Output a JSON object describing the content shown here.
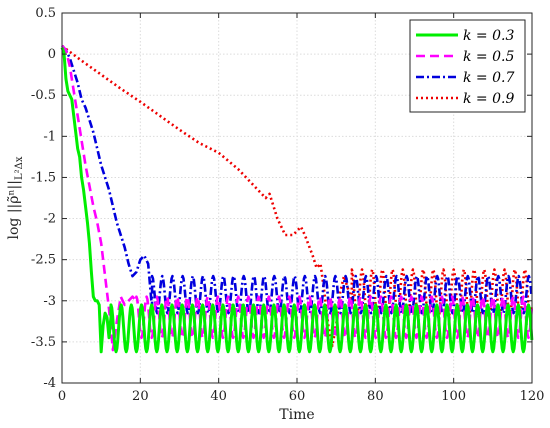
{
  "chart_data": {
    "type": "line",
    "title": "",
    "xlabel": "Time",
    "ylabel": "log ||ρ̃ⁿ||",
    "ylabel_subscript": "L²Δx",
    "xlim": [
      0,
      120
    ],
    "ylim": [
      -4,
      0.5
    ],
    "xticks": [
      0,
      20,
      40,
      60,
      80,
      100,
      120
    ],
    "yticks": [
      0.5,
      0,
      -0.5,
      -1,
      -1.5,
      -2,
      -2.5,
      -3,
      -3.5,
      -4
    ],
    "xtick_labels": [
      "0",
      "20",
      "40",
      "60",
      "80",
      "100",
      "120"
    ],
    "ytick_labels": [
      "0.5",
      "0",
      "-0.5",
      "-1",
      "-1.5",
      "-2",
      "-2.5",
      "-3",
      "-3.5",
      "-4"
    ],
    "grid": true,
    "legend_position": "top-right",
    "series": [
      {
        "name": "k = 0.3",
        "color": "#00ee00",
        "dash": "solid",
        "points": [
          [
            0,
            0.08
          ],
          [
            0.5,
            0.02
          ],
          [
            1,
            -0.3
          ],
          [
            1.5,
            -0.45
          ],
          [
            2,
            -0.5
          ],
          [
            2.5,
            -0.55
          ],
          [
            3,
            -0.75
          ],
          [
            3.5,
            -0.95
          ],
          [
            4,
            -1.15
          ],
          [
            4.5,
            -1.25
          ],
          [
            5,
            -1.5
          ],
          [
            5.5,
            -1.65
          ],
          [
            6,
            -1.85
          ],
          [
            6.5,
            -2.05
          ],
          [
            7,
            -2.3
          ],
          [
            7.5,
            -2.65
          ],
          [
            8,
            -2.95
          ],
          [
            8.5,
            -3.0
          ],
          [
            9,
            -3.0
          ],
          [
            9.5,
            -3.05
          ],
          [
            10,
            -3.62
          ],
          [
            10.5,
            -3.3
          ],
          [
            11,
            -3.15
          ],
          [
            11.5,
            -3.2
          ],
          [
            12,
            -3.45
          ],
          [
            12.5,
            -3.2
          ]
        ]
      },
      {
        "name": "k = 0.5",
        "color": "#ff00ff",
        "dash": "dashed",
        "points": [
          [
            0,
            0.1
          ],
          [
            1,
            0.05
          ],
          [
            2,
            -0.15
          ],
          [
            3,
            -0.45
          ],
          [
            4,
            -0.75
          ],
          [
            5,
            -1.05
          ],
          [
            6,
            -1.35
          ],
          [
            7,
            -1.6
          ],
          [
            8,
            -1.85
          ],
          [
            9,
            -2.05
          ],
          [
            10,
            -2.3
          ],
          [
            11,
            -2.7
          ],
          [
            12,
            -3.1
          ],
          [
            13,
            -3.6
          ],
          [
            14,
            -3.25
          ],
          [
            15,
            -2.95
          ],
          [
            16,
            -3.05
          ],
          [
            17,
            -3.0
          ],
          [
            18,
            -2.95
          ],
          [
            19,
            -3.0
          ]
        ]
      },
      {
        "name": "k = 0.7",
        "color": "#0000dd",
        "dash": "dashdot",
        "points": [
          [
            0,
            0.1
          ],
          [
            1,
            0.05
          ],
          [
            2,
            -0.05
          ],
          [
            3,
            -0.2
          ],
          [
            4,
            -0.35
          ],
          [
            5,
            -0.55
          ],
          [
            6,
            -0.65
          ],
          [
            7,
            -0.8
          ],
          [
            8,
            -0.95
          ],
          [
            9,
            -1.15
          ],
          [
            10,
            -1.35
          ],
          [
            11,
            -1.5
          ],
          [
            12,
            -1.65
          ],
          [
            13,
            -1.85
          ],
          [
            14,
            -2.05
          ],
          [
            15,
            -2.2
          ],
          [
            16,
            -2.35
          ],
          [
            17,
            -2.55
          ],
          [
            18,
            -2.7
          ],
          [
            19,
            -2.65
          ],
          [
            20,
            -2.5
          ],
          [
            21,
            -2.45
          ],
          [
            22,
            -2.55
          ],
          [
            23,
            -3.1
          ]
        ]
      },
      {
        "name": "k = 0.9",
        "color": "#ee0000",
        "dash": "dotted",
        "points": [
          [
            0,
            0.1
          ],
          [
            5,
            -0.08
          ],
          [
            10,
            -0.25
          ],
          [
            15,
            -0.42
          ],
          [
            20,
            -0.58
          ],
          [
            25,
            -0.75
          ],
          [
            30,
            -0.92
          ],
          [
            35,
            -1.08
          ],
          [
            40,
            -1.2
          ],
          [
            45,
            -1.4
          ],
          [
            50,
            -1.65
          ],
          [
            52,
            -1.75
          ],
          [
            53,
            -1.7
          ],
          [
            55,
            -2.0
          ],
          [
            57,
            -2.2
          ],
          [
            59,
            -2.2
          ],
          [
            61,
            -2.1
          ],
          [
            62,
            -2.2
          ],
          [
            64,
            -2.45
          ],
          [
            65,
            -2.6
          ],
          [
            66,
            -2.55
          ],
          [
            67,
            -2.9
          ],
          [
            68,
            -3.3
          ],
          [
            69,
            -3.55
          ],
          [
            70,
            -3.3
          ],
          [
            71,
            -2.9
          ],
          [
            72,
            -2.7
          ],
          [
            74,
            -3.0
          ]
        ]
      }
    ],
    "oscillation_bands": [
      {
        "series": "k = 0.3",
        "start": 12.5,
        "end": 120,
        "period": 2.6,
        "low": -3.62,
        "high": -3.05
      },
      {
        "series": "k = 0.5",
        "start": 19,
        "end": 120,
        "period": 2.6,
        "low": -3.45,
        "high": -2.95
      },
      {
        "series": "k = 0.7",
        "start": 23,
        "end": 120,
        "period": 2.6,
        "low": -3.15,
        "high": -2.7
      },
      {
        "series": "k = 0.9",
        "start": 74,
        "end": 120,
        "period": 2.6,
        "low": -3.2,
        "high": -2.62
      }
    ]
  }
}
